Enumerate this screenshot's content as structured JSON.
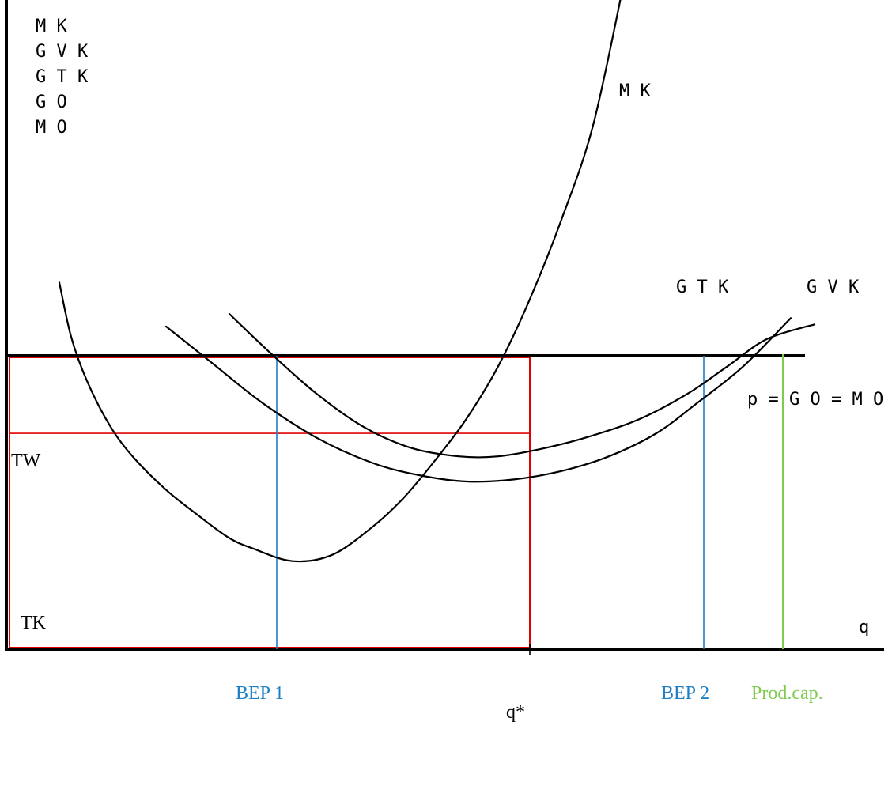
{
  "chart_data": {
    "type": "line",
    "title": "",
    "y_axis_labels": [
      "M K",
      "G V K",
      "G T K",
      "G O",
      "M O"
    ],
    "x_axis_label": "q",
    "series": [
      {
        "name": "M K",
        "x": [
          0.65,
          0.8,
          1.0,
          1.3,
          1.6,
          2.0,
          2.4,
          2.8,
          3.1,
          3.6,
          4.1,
          4.6,
          5.0,
          5.4,
          5.8,
          6.2,
          6.6,
          7.0,
          7.4,
          7.8
        ],
        "y": [
          17.5,
          14.9,
          12.8,
          10.6,
          9.1,
          7.6,
          6.4,
          5.3,
          4.8,
          4.2,
          4.5,
          5.8,
          7.2,
          9.0,
          11.0,
          13.5,
          16.7,
          20.5,
          25.0,
          32.0
        ]
      },
      {
        "name": "G T K",
        "x": [
          2.0,
          2.6,
          3.2,
          3.9,
          4.6,
          5.2,
          5.8,
          6.4,
          7.0,
          7.6,
          8.2,
          8.7,
          9.3,
          9.9
        ],
        "y": [
          15.4,
          13.6,
          11.8,
          10.1,
          8.9,
          8.3,
          8.0,
          8.1,
          8.5,
          9.2,
          10.3,
          11.7,
          13.5,
          15.8
        ]
      },
      {
        "name": "G V K",
        "x": [
          2.8,
          3.3,
          3.9,
          4.5,
          5.1,
          5.7,
          6.2,
          6.8,
          7.4,
          8.0,
          8.6,
          9.1,
          9.6,
          10.2
        ],
        "y": [
          16.0,
          14.2,
          12.2,
          10.6,
          9.6,
          9.2,
          9.2,
          9.6,
          10.2,
          11.0,
          12.2,
          13.5,
          14.8,
          15.5
        ]
      }
    ],
    "price_level": 14.0,
    "price_label": "p = G O = M O",
    "revenue_rect": {
      "q": 6.6,
      "p": 14.0,
      "label": "TW"
    },
    "cost_rect": {
      "q": 6.6,
      "cost": 10.3,
      "label": "TK"
    },
    "verticals": [
      {
        "label": "BEP 1",
        "x": 3.4,
        "color": "#1f7fc4"
      },
      {
        "label": "q*",
        "x": 6.6,
        "color": "#000000"
      },
      {
        "label": "BEP 2",
        "x": 8.8,
        "color": "#1f7fc4"
      },
      {
        "label": "Prod.cap.",
        "x": 9.8,
        "color": "#7ecb4f"
      }
    ],
    "curve_labels": [
      "M K",
      "G T K",
      "G V K"
    ],
    "colors": {
      "revenue": "#e00000",
      "bep": "#1f7fc4",
      "capacity": "#7ecb4f"
    }
  }
}
